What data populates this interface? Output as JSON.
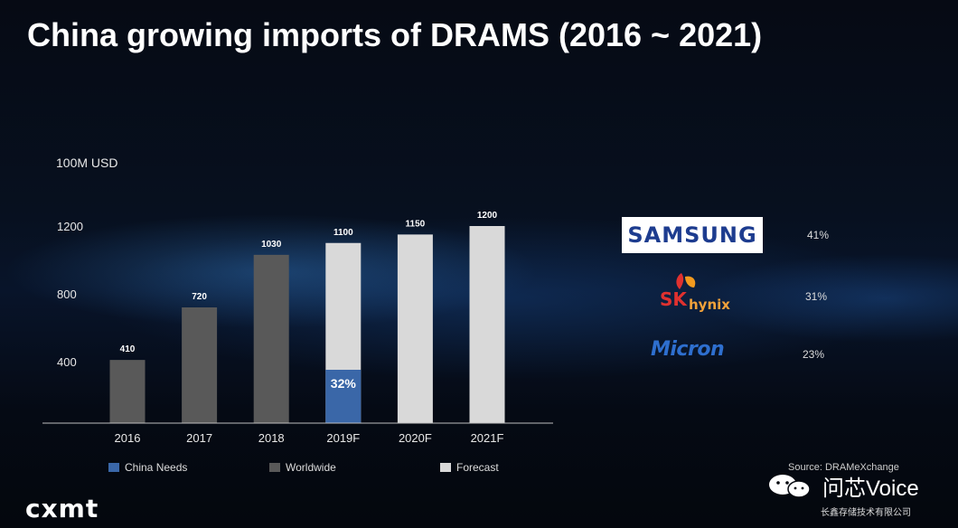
{
  "slide": {
    "title": "China growing imports of DRAMS (2016 ~ 2021)"
  },
  "chart_data": {
    "type": "bar",
    "ylabel": "100M USD",
    "categories": [
      "2016",
      "2017",
      "2018",
      "2019F",
      "2020F",
      "2021F"
    ],
    "values": [
      410,
      720,
      1030,
      1100,
      1150,
      1200
    ],
    "value_labels": [
      "410",
      "720",
      "1030",
      "1100",
      "1150",
      "1200"
    ],
    "bar_types": [
      "worldwide",
      "worldwide",
      "worldwide",
      "forecast",
      "forecast",
      "forecast"
    ],
    "china_needs": {
      "category": "2019F",
      "value": 352,
      "label": "32%"
    },
    "yticks": [
      400,
      800,
      1200
    ],
    "ylim": [
      0,
      1350
    ],
    "grid": false,
    "legend": [
      {
        "key": "china_needs",
        "label": "China Needs",
        "color": "#3a67a8"
      },
      {
        "key": "worldwide",
        "label": "Worldwide",
        "color": "#595959"
      },
      {
        "key": "forecast",
        "label": "Forecast",
        "color": "#d9d9d9"
      }
    ]
  },
  "market_share": [
    {
      "brand": "SAMSUNG",
      "share": "41%"
    },
    {
      "brand": "SK hynix",
      "share": "31%"
    },
    {
      "brand": "Micron",
      "share": "23%"
    }
  ],
  "brands": {
    "sk": "SK",
    "hynix": "hynix",
    "micron": "Micron"
  },
  "footer": {
    "source": "Source: DRAMeXchange",
    "wechat": "问芯Voice",
    "company": "长鑫存储技术有限公司",
    "logo": "cxmt"
  },
  "colors": {
    "china_needs": "#3a67a8",
    "worldwide": "#595959",
    "forecast": "#d9d9d9",
    "samsung_blue": "#1d3c8f",
    "sk_red": "#e0312f"
  }
}
